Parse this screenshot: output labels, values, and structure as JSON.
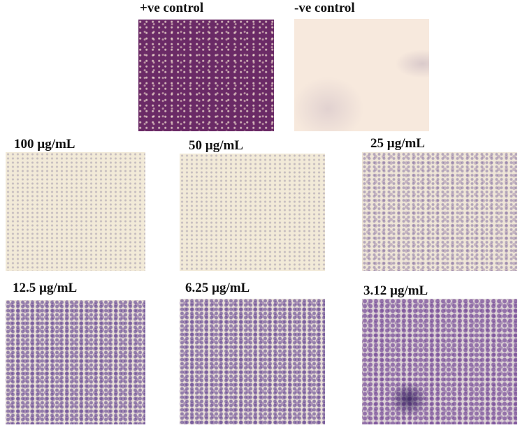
{
  "panels": [
    {
      "label": "+ve control"
    },
    {
      "label": "-ve control"
    },
    {
      "label": "100 µg/mL"
    },
    {
      "label": "50 µg/mL"
    },
    {
      "label": "25 µg/mL"
    },
    {
      "label": "12.5 µg/mL"
    },
    {
      "label": "6.25 µg/mL"
    },
    {
      "label": "3.12 µg/mL"
    }
  ],
  "colors": {
    "stain": "#6a2a66",
    "background": "#f2ead8"
  }
}
